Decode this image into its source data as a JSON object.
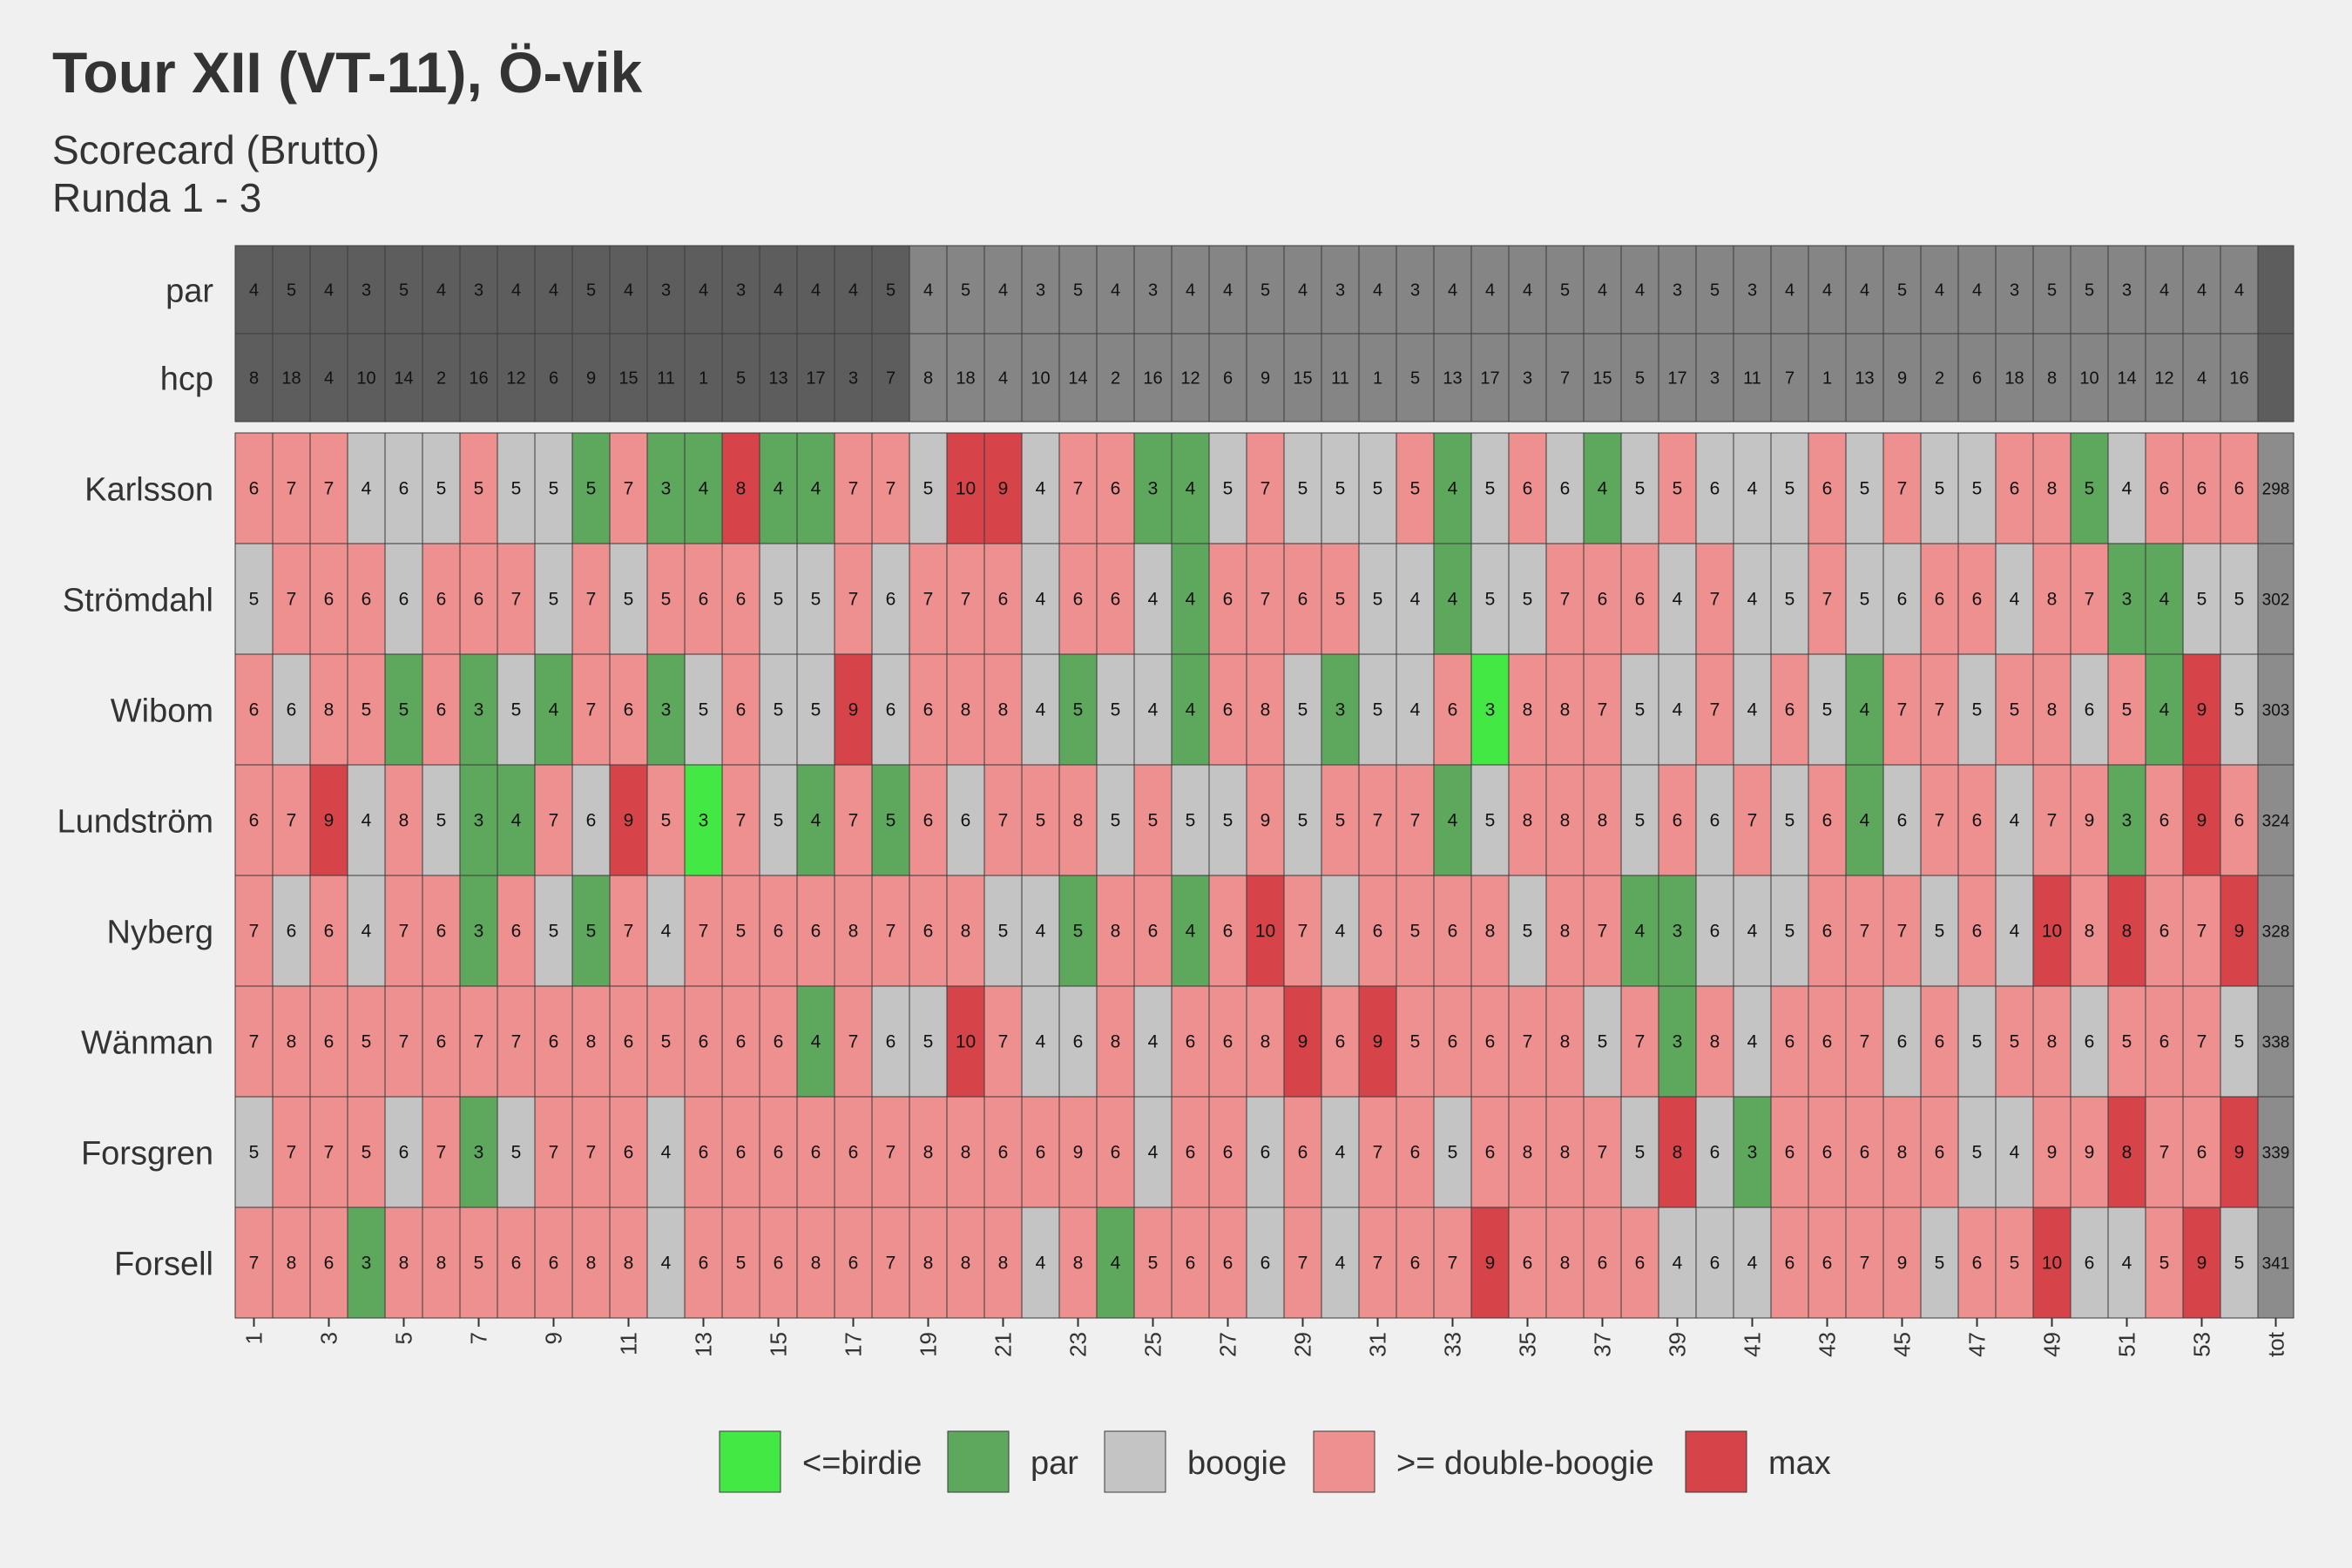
{
  "chart_data": {
    "type": "heatmap",
    "title": "Tour XII (VT-11), Ö-vik",
    "subtitle_lines": [
      "Scorecard (Brutto)",
      "Runda 1 - 3"
    ],
    "holes": [
      1,
      2,
      3,
      4,
      5,
      6,
      7,
      8,
      9,
      10,
      11,
      12,
      13,
      14,
      15,
      16,
      17,
      18,
      19,
      20,
      21,
      22,
      23,
      24,
      25,
      26,
      27,
      28,
      29,
      30,
      31,
      32,
      33,
      34,
      35,
      36,
      37,
      38,
      39,
      40,
      41,
      42,
      43,
      44,
      45,
      46,
      47,
      48,
      49,
      50,
      51,
      52,
      53,
      54
    ],
    "x_tick_labels": [
      "1",
      "3",
      "5",
      "7",
      "9",
      "11",
      "13",
      "15",
      "17",
      "19",
      "21",
      "23",
      "25",
      "27",
      "29",
      "31",
      "33",
      "35",
      "37",
      "39",
      "41",
      "43",
      "45",
      "47",
      "49",
      "51",
      "53",
      "tot"
    ],
    "total_label": "tot",
    "header_rows": [
      {
        "label": "par",
        "values": [
          4,
          5,
          4,
          3,
          5,
          4,
          3,
          4,
          4,
          5,
          4,
          3,
          4,
          3,
          4,
          4,
          4,
          5,
          4,
          5,
          4,
          3,
          5,
          4,
          3,
          4,
          4,
          5,
          4,
          3,
          4,
          3,
          4,
          4,
          4,
          5,
          4,
          4,
          3,
          5,
          3,
          4,
          4,
          4,
          5,
          4,
          4,
          3,
          5,
          5,
          3,
          4,
          4,
          4
        ]
      },
      {
        "label": "hcp",
        "values": [
          8,
          18,
          4,
          10,
          14,
          2,
          16,
          12,
          6,
          9,
          15,
          11,
          1,
          5,
          13,
          17,
          3,
          7,
          8,
          18,
          4,
          10,
          14,
          2,
          16,
          12,
          6,
          9,
          15,
          11,
          1,
          5,
          13,
          17,
          3,
          7,
          15,
          5,
          17,
          3,
          11,
          7,
          1,
          13,
          9,
          2,
          6,
          18,
          8,
          10,
          14,
          12,
          4,
          16
        ]
      }
    ],
    "players": [
      {
        "name": "Karlsson",
        "scores": [
          6,
          7,
          7,
          4,
          6,
          5,
          5,
          5,
          5,
          5,
          7,
          3,
          4,
          8,
          4,
          4,
          7,
          7,
          5,
          10,
          9,
          4,
          7,
          6,
          3,
          4,
          5,
          7,
          5,
          5,
          5,
          5,
          4,
          5,
          6,
          6,
          4,
          5,
          5,
          6,
          4,
          5,
          6,
          5,
          7,
          5,
          5,
          6,
          8,
          5,
          4,
          6,
          6,
          6
        ],
        "categories": [
          "d",
          "d",
          "d",
          "b",
          "b",
          "b",
          "d",
          "b",
          "b",
          "p",
          "d",
          "p",
          "p",
          "m",
          "p",
          "p",
          "d",
          "d",
          "b",
          "m",
          "m",
          "b",
          "d",
          "d",
          "p",
          "p",
          "b",
          "d",
          "b",
          "b",
          "b",
          "d",
          "p",
          "b",
          "d",
          "b",
          "p",
          "b",
          "d",
          "b",
          "b",
          "b",
          "d",
          "b",
          "d",
          "b",
          "b",
          "d",
          "d",
          "p",
          "b",
          "d",
          "d",
          "d"
        ],
        "total": 298
      },
      {
        "name": "Strömdahl",
        "scores": [
          5,
          7,
          6,
          6,
          6,
          6,
          6,
          7,
          5,
          7,
          5,
          5,
          6,
          6,
          5,
          5,
          7,
          6,
          7,
          7,
          6,
          4,
          6,
          6,
          4,
          4,
          6,
          7,
          6,
          5,
          5,
          4,
          4,
          5,
          5,
          7,
          6,
          6,
          4,
          7,
          4,
          5,
          7,
          5,
          6,
          6,
          6,
          4,
          8,
          7,
          3,
          4,
          5,
          5
        ],
        "categories": [
          "b",
          "d",
          "d",
          "d",
          "b",
          "d",
          "d",
          "d",
          "b",
          "d",
          "b",
          "d",
          "d",
          "d",
          "b",
          "b",
          "d",
          "b",
          "d",
          "d",
          "d",
          "b",
          "d",
          "d",
          "b",
          "p",
          "d",
          "d",
          "d",
          "d",
          "b",
          "b",
          "p",
          "b",
          "b",
          "d",
          "d",
          "d",
          "b",
          "d",
          "b",
          "b",
          "d",
          "b",
          "b",
          "d",
          "d",
          "b",
          "d",
          "d",
          "p",
          "p",
          "b",
          "b"
        ],
        "total": 302
      },
      {
        "name": "Wibom",
        "scores": [
          6,
          6,
          8,
          5,
          5,
          6,
          3,
          5,
          4,
          7,
          6,
          3,
          5,
          6,
          5,
          5,
          9,
          6,
          6,
          8,
          8,
          4,
          5,
          5,
          4,
          4,
          6,
          8,
          5,
          3,
          5,
          4,
          6,
          3,
          8,
          8,
          7,
          5,
          4,
          7,
          4,
          6,
          5,
          4,
          7,
          7,
          5,
          5,
          8,
          6,
          5,
          4,
          9,
          5
        ],
        "categories": [
          "d",
          "b",
          "d",
          "d",
          "p",
          "d",
          "p",
          "b",
          "p",
          "d",
          "d",
          "p",
          "b",
          "d",
          "b",
          "b",
          "m",
          "b",
          "d",
          "d",
          "d",
          "b",
          "p",
          "b",
          "b",
          "p",
          "d",
          "d",
          "b",
          "p",
          "b",
          "b",
          "d",
          "x",
          "d",
          "d",
          "d",
          "b",
          "b",
          "d",
          "b",
          "d",
          "b",
          "p",
          "d",
          "d",
          "b",
          "d",
          "d",
          "b",
          "d",
          "p",
          "m",
          "b"
        ],
        "total": 303
      },
      {
        "name": "Lundström",
        "scores": [
          6,
          7,
          9,
          4,
          8,
          5,
          3,
          4,
          7,
          6,
          9,
          5,
          3,
          7,
          5,
          4,
          7,
          5,
          6,
          6,
          7,
          5,
          8,
          5,
          5,
          5,
          5,
          9,
          5,
          5,
          7,
          7,
          4,
          5,
          8,
          8,
          8,
          5,
          6,
          6,
          7,
          5,
          6,
          4,
          6,
          7,
          6,
          4,
          7,
          9,
          3,
          6,
          9,
          6
        ],
        "categories": [
          "d",
          "d",
          "m",
          "b",
          "d",
          "b",
          "p",
          "p",
          "d",
          "b",
          "m",
          "d",
          "x",
          "d",
          "b",
          "p",
          "d",
          "p",
          "d",
          "b",
          "d",
          "d",
          "d",
          "b",
          "d",
          "b",
          "b",
          "d",
          "b",
          "d",
          "d",
          "d",
          "p",
          "b",
          "d",
          "d",
          "d",
          "b",
          "d",
          "b",
          "d",
          "b",
          "d",
          "p",
          "b",
          "d",
          "d",
          "b",
          "d",
          "d",
          "p",
          "d",
          "m",
          "d"
        ],
        "total": 324
      },
      {
        "name": "Nyberg",
        "scores": [
          7,
          6,
          6,
          4,
          7,
          6,
          3,
          6,
          5,
          5,
          7,
          4,
          7,
          5,
          6,
          6,
          8,
          7,
          6,
          8,
          5,
          4,
          5,
          8,
          6,
          4,
          6,
          10,
          7,
          4,
          6,
          5,
          6,
          8,
          5,
          8,
          7,
          4,
          3,
          6,
          4,
          5,
          6,
          7,
          7,
          5,
          6,
          4,
          10,
          8,
          8,
          6,
          7,
          9
        ],
        "categories": [
          "d",
          "b",
          "d",
          "b",
          "d",
          "d",
          "p",
          "d",
          "b",
          "p",
          "d",
          "b",
          "d",
          "d",
          "d",
          "d",
          "d",
          "d",
          "d",
          "d",
          "b",
          "b",
          "p",
          "d",
          "d",
          "p",
          "d",
          "m",
          "d",
          "b",
          "d",
          "d",
          "d",
          "d",
          "b",
          "d",
          "d",
          "p",
          "p",
          "b",
          "b",
          "b",
          "d",
          "d",
          "d",
          "b",
          "d",
          "b",
          "m",
          "d",
          "m",
          "d",
          "d",
          "m"
        ],
        "total": 328
      },
      {
        "name": "Wänman",
        "scores": [
          7,
          8,
          6,
          5,
          7,
          6,
          7,
          7,
          6,
          8,
          6,
          5,
          6,
          6,
          6,
          4,
          7,
          6,
          5,
          10,
          7,
          4,
          6,
          8,
          4,
          6,
          6,
          8,
          9,
          6,
          9,
          5,
          6,
          6,
          7,
          8,
          5,
          7,
          3,
          8,
          4,
          6,
          6,
          7,
          6,
          6,
          5,
          5,
          8,
          6,
          5,
          6,
          7,
          5
        ],
        "categories": [
          "d",
          "d",
          "d",
          "d",
          "d",
          "d",
          "d",
          "d",
          "d",
          "d",
          "d",
          "d",
          "d",
          "d",
          "d",
          "p",
          "d",
          "b",
          "b",
          "m",
          "d",
          "b",
          "b",
          "d",
          "b",
          "d",
          "d",
          "d",
          "m",
          "d",
          "m",
          "d",
          "d",
          "d",
          "d",
          "d",
          "b",
          "d",
          "p",
          "d",
          "b",
          "d",
          "d",
          "d",
          "b",
          "d",
          "b",
          "d",
          "d",
          "b",
          "d",
          "d",
          "d",
          "b"
        ],
        "total": 338
      },
      {
        "name": "Forsgren",
        "scores": [
          5,
          7,
          7,
          5,
          6,
          7,
          3,
          5,
          7,
          7,
          6,
          4,
          6,
          6,
          6,
          6,
          6,
          7,
          8,
          8,
          6,
          6,
          9,
          6,
          4,
          6,
          6,
          6,
          6,
          4,
          7,
          6,
          5,
          6,
          8,
          8,
          7,
          5,
          8,
          6,
          3,
          6,
          6,
          6,
          8,
          6,
          5,
          4,
          9,
          9,
          8,
          7,
          6,
          9
        ],
        "categories": [
          "b",
          "d",
          "d",
          "d",
          "b",
          "d",
          "p",
          "b",
          "d",
          "d",
          "d",
          "b",
          "d",
          "d",
          "d",
          "d",
          "d",
          "d",
          "d",
          "d",
          "d",
          "d",
          "d",
          "d",
          "b",
          "d",
          "d",
          "b",
          "d",
          "b",
          "d",
          "d",
          "b",
          "d",
          "d",
          "d",
          "d",
          "b",
          "m",
          "b",
          "p",
          "d",
          "d",
          "d",
          "d",
          "d",
          "b",
          "b",
          "d",
          "d",
          "m",
          "d",
          "d",
          "m"
        ],
        "total": 339
      },
      {
        "name": "Forsell",
        "scores": [
          7,
          8,
          6,
          3,
          8,
          8,
          5,
          6,
          6,
          8,
          8,
          4,
          6,
          5,
          6,
          8,
          6,
          7,
          8,
          8,
          8,
          4,
          8,
          4,
          5,
          6,
          6,
          6,
          7,
          4,
          7,
          6,
          7,
          9,
          6,
          8,
          6,
          6,
          4,
          6,
          4,
          6,
          6,
          7,
          9,
          5,
          6,
          5,
          10,
          6,
          4,
          5,
          9,
          5
        ],
        "categories": [
          "d",
          "d",
          "d",
          "p",
          "d",
          "d",
          "d",
          "d",
          "d",
          "d",
          "d",
          "b",
          "d",
          "d",
          "d",
          "d",
          "d",
          "d",
          "d",
          "d",
          "d",
          "b",
          "d",
          "p",
          "d",
          "d",
          "d",
          "b",
          "d",
          "b",
          "d",
          "d",
          "d",
          "m",
          "d",
          "d",
          "d",
          "d",
          "b",
          "b",
          "b",
          "d",
          "d",
          "d",
          "d",
          "b",
          "d",
          "d",
          "m",
          "b",
          "b",
          "d",
          "m",
          "b"
        ],
        "total": 341
      }
    ],
    "legend": [
      {
        "key": "x",
        "label": "<=birdie",
        "color": "#44e844"
      },
      {
        "key": "p",
        "label": "par",
        "color": "#5ea85e"
      },
      {
        "key": "b",
        "label": "boogie",
        "color": "#c4c4c4"
      },
      {
        "key": "d",
        "label": ">= double-boogie",
        "color": "#ef9090"
      },
      {
        "key": "m",
        "label": "max",
        "color": "#d6444a"
      }
    ],
    "legend_position": "bottom",
    "colors": {
      "header_front": "#5d5d5d",
      "header_back": "#858585",
      "total_column": "#8c8c8c",
      "header_total": "#5d5d5d",
      "background": "#f0f0f0",
      "text": "#333333"
    }
  }
}
